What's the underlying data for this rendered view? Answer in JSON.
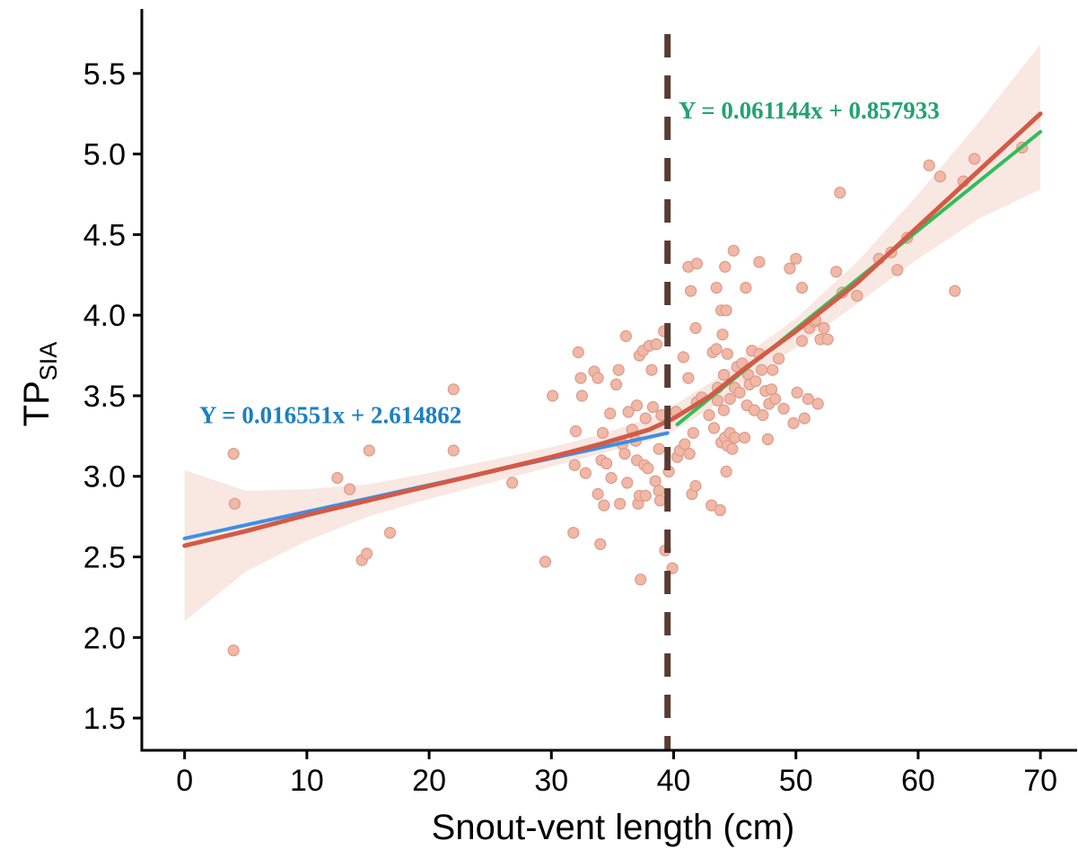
{
  "chart_data": {
    "type": "scatter",
    "xlabel": "Snout-vent length (cm)",
    "ylabel": {
      "main": "TP",
      "sub": "SIA"
    },
    "xlim": [
      -3.5,
      73
    ],
    "ylim": [
      1.3,
      5.9
    ],
    "xticks": [
      0,
      10,
      20,
      30,
      40,
      50,
      60,
      70
    ],
    "yticks": [
      1.5,
      2.0,
      2.5,
      3.0,
      3.5,
      4.0,
      4.5,
      5.0,
      5.5
    ],
    "xtick_labels": [
      "0",
      "10",
      "20",
      "30",
      "40",
      "50",
      "60",
      "70"
    ],
    "ytick_labels": [
      "1.5",
      "2.0",
      "2.5",
      "3.0",
      "3.5",
      "4.0",
      "4.5",
      "5.0",
      "5.5"
    ],
    "grid": false,
    "breakpoint_x": 39.5,
    "points": [
      [
        4,
        3.14
      ],
      [
        4.1,
        2.83
      ],
      [
        4,
        1.92
      ],
      [
        12.5,
        2.99
      ],
      [
        13.5,
        2.92
      ],
      [
        14.5,
        2.48
      ],
      [
        14.9,
        2.52
      ],
      [
        15.1,
        3.16
      ],
      [
        16.8,
        2.65
      ],
      [
        22,
        3.54
      ],
      [
        22,
        3.16
      ],
      [
        26.8,
        2.96
      ],
      [
        29.5,
        2.47
      ],
      [
        30.1,
        3.5
      ],
      [
        31.8,
        2.65
      ],
      [
        31.9,
        3.07
      ],
      [
        32,
        3.28
      ],
      [
        32.2,
        3.77
      ],
      [
        32.4,
        3.61
      ],
      [
        32.5,
        3.5
      ],
      [
        32.8,
        3.02
      ],
      [
        33.5,
        3.65
      ],
      [
        33.8,
        3.61
      ],
      [
        33.8,
        2.89
      ],
      [
        34,
        2.58
      ],
      [
        34.1,
        3.1
      ],
      [
        34.2,
        3.27
      ],
      [
        34.3,
        2.82
      ],
      [
        34.5,
        3.08
      ],
      [
        34.8,
        3.39
      ],
      [
        34.9,
        2.99
      ],
      [
        35.3,
        3.57
      ],
      [
        35.5,
        3.66
      ],
      [
        35.6,
        2.83
      ],
      [
        35.8,
        3.2
      ],
      [
        36,
        3.14
      ],
      [
        36.1,
        3.87
      ],
      [
        36.2,
        2.96
      ],
      [
        36.3,
        3.4
      ],
      [
        36.6,
        3.29
      ],
      [
        36.9,
        3.22
      ],
      [
        37,
        3.44
      ],
      [
        37,
        3.1
      ],
      [
        37.1,
        2.83
      ],
      [
        37.2,
        2.88
      ],
      [
        37.2,
        3.75
      ],
      [
        37.3,
        2.36
      ],
      [
        37.5,
        3.78
      ],
      [
        37.6,
        3.07
      ],
      [
        37.7,
        3.36
      ],
      [
        37.7,
        2.88
      ],
      [
        37.9,
        3.05
      ],
      [
        38,
        3.81
      ],
      [
        38.2,
        3.66
      ],
      [
        38.3,
        3.43
      ],
      [
        38.5,
        2.97
      ],
      [
        38.6,
        3.82
      ],
      [
        38.8,
        3.17
      ],
      [
        38.8,
        2.91
      ],
      [
        38.9,
        2.85
      ],
      [
        39,
        3.38
      ],
      [
        39.2,
        3.9
      ],
      [
        39.3,
        2.54
      ],
      [
        39.6,
        3.03
      ],
      [
        39.9,
        2.43
      ],
      [
        40.2,
        3.4
      ],
      [
        40.3,
        3.12
      ],
      [
        40.5,
        3.16
      ],
      [
        40.8,
        3.74
      ],
      [
        40.9,
        3.2
      ],
      [
        41.2,
        4.3
      ],
      [
        41.2,
        3.61
      ],
      [
        41.3,
        3.14
      ],
      [
        41.4,
        4.15
      ],
      [
        41.5,
        2.89
      ],
      [
        41.6,
        3.27
      ],
      [
        41.8,
        2.94
      ],
      [
        41.8,
        3.92
      ],
      [
        41.9,
        4.32
      ],
      [
        41.9,
        3.46
      ],
      [
        42.3,
        3.49
      ],
      [
        42.9,
        3.38
      ],
      [
        43.1,
        2.82
      ],
      [
        43.2,
        3.77
      ],
      [
        43.3,
        3.3
      ],
      [
        43.5,
        4.17
      ],
      [
        43.5,
        3.79
      ],
      [
        43.6,
        3.55
      ],
      [
        43.6,
        3.47
      ],
      [
        43.8,
        2.79
      ],
      [
        43.9,
        4.03
      ],
      [
        43.9,
        3.21
      ],
      [
        44,
        3.88
      ],
      [
        44.1,
        3.63
      ],
      [
        44.1,
        3.41
      ],
      [
        44.2,
        4.3
      ],
      [
        44.2,
        3.24
      ],
      [
        44.3,
        4.03
      ],
      [
        44.3,
        3.03
      ],
      [
        44.4,
        3.19
      ],
      [
        44.4,
        3.76
      ],
      [
        44.6,
        3.48
      ],
      [
        44.6,
        3.27
      ],
      [
        44.8,
        3.17
      ],
      [
        44.9,
        4.4
      ],
      [
        45,
        3.24
      ],
      [
        45,
        3.55
      ],
      [
        45.2,
        3.68
      ],
      [
        45.4,
        3.52
      ],
      [
        45.6,
        3.7
      ],
      [
        45.8,
        3.24
      ],
      [
        45.9,
        4.17
      ],
      [
        46,
        3.44
      ],
      [
        46.1,
        3.63
      ],
      [
        46.2,
        3.57
      ],
      [
        46.4,
        3.78
      ],
      [
        46.6,
        3.41
      ],
      [
        46.7,
        3.59
      ],
      [
        47,
        4.33
      ],
      [
        47,
        3.76
      ],
      [
        47.2,
        3.66
      ],
      [
        47.3,
        3.38
      ],
      [
        47.5,
        3.53
      ],
      [
        47.7,
        3.23
      ],
      [
        47.8,
        3.45
      ],
      [
        48,
        3.54
      ],
      [
        48.1,
        3.66
      ],
      [
        48.3,
        3.48
      ],
      [
        48.6,
        3.73
      ],
      [
        49,
        3.42
      ],
      [
        49.5,
        4.29
      ],
      [
        49.8,
        3.33
      ],
      [
        50,
        4.35
      ],
      [
        50.1,
        3.52
      ],
      [
        50.5,
        3.84
      ],
      [
        50.5,
        4.17
      ],
      [
        50.7,
        3.36
      ],
      [
        51,
        3.48
      ],
      [
        51.1,
        3.92
      ],
      [
        51.5,
        3.96
      ],
      [
        51.6,
        3.97
      ],
      [
        51.8,
        3.45
      ],
      [
        52,
        3.85
      ],
      [
        52.3,
        3.92
      ],
      [
        52.6,
        3.85
      ],
      [
        53.3,
        4.27
      ],
      [
        53.6,
        4.76
      ],
      [
        53.8,
        4.14
      ],
      [
        55,
        4.12
      ],
      [
        56.8,
        4.35
      ],
      [
        57.8,
        4.39
      ],
      [
        58.3,
        4.28
      ],
      [
        59.1,
        4.48
      ],
      [
        60.9,
        4.93
      ],
      [
        61.8,
        4.86
      ],
      [
        63,
        4.15
      ],
      [
        63.7,
        4.83
      ],
      [
        64.6,
        4.97
      ],
      [
        68.5,
        5.04
      ]
    ],
    "segments": [
      {
        "name": "Y = 0.016551x + 2.614862",
        "slope": 0.016551,
        "intercept": 2.614862,
        "x": [
          0,
          39.5
        ],
        "color": "#3d8fe4"
      },
      {
        "name": "Y = 0.061144x + 0.857933",
        "slope": 0.061144,
        "intercept": 0.857933,
        "x": [
          40.3,
          70
        ],
        "color": "#2fbe5c"
      }
    ],
    "smooth_fit": {
      "x": [
        0,
        5,
        10,
        15,
        20,
        25,
        30,
        34,
        38,
        40,
        43,
        46,
        50,
        55,
        60,
        65,
        70
      ],
      "y": [
        2.57,
        2.66,
        2.76,
        2.85,
        2.94,
        3.03,
        3.12,
        3.2,
        3.29,
        3.36,
        3.5,
        3.68,
        3.9,
        4.2,
        4.55,
        4.9,
        5.25
      ],
      "lo": [
        2.1,
        2.41,
        2.6,
        2.75,
        2.86,
        2.96,
        3.06,
        3.14,
        3.22,
        3.28,
        3.42,
        3.6,
        3.8,
        4.07,
        4.35,
        4.6,
        4.78
      ],
      "hi": [
        3.04,
        2.91,
        2.92,
        2.95,
        3.02,
        3.1,
        3.18,
        3.26,
        3.36,
        3.44,
        3.58,
        3.76,
        3.98,
        4.33,
        4.75,
        5.2,
        5.68
      ],
      "line_color": "#d45a45",
      "band_color": "#f9e7e2"
    },
    "annotations": [
      {
        "text": "Y = 0.016551x + 2.614862",
        "x": 1.2,
        "y": 3.33,
        "color": "#1c7fc2"
      },
      {
        "text": "Y = 0.061144x + 0.857933",
        "x": 40.4,
        "y": 5.22,
        "color": "#22a36e"
      }
    ],
    "point_fill": "#f2b7a5",
    "point_stroke": "#d89c8d",
    "breakpoint_color": "#5a3b32"
  }
}
